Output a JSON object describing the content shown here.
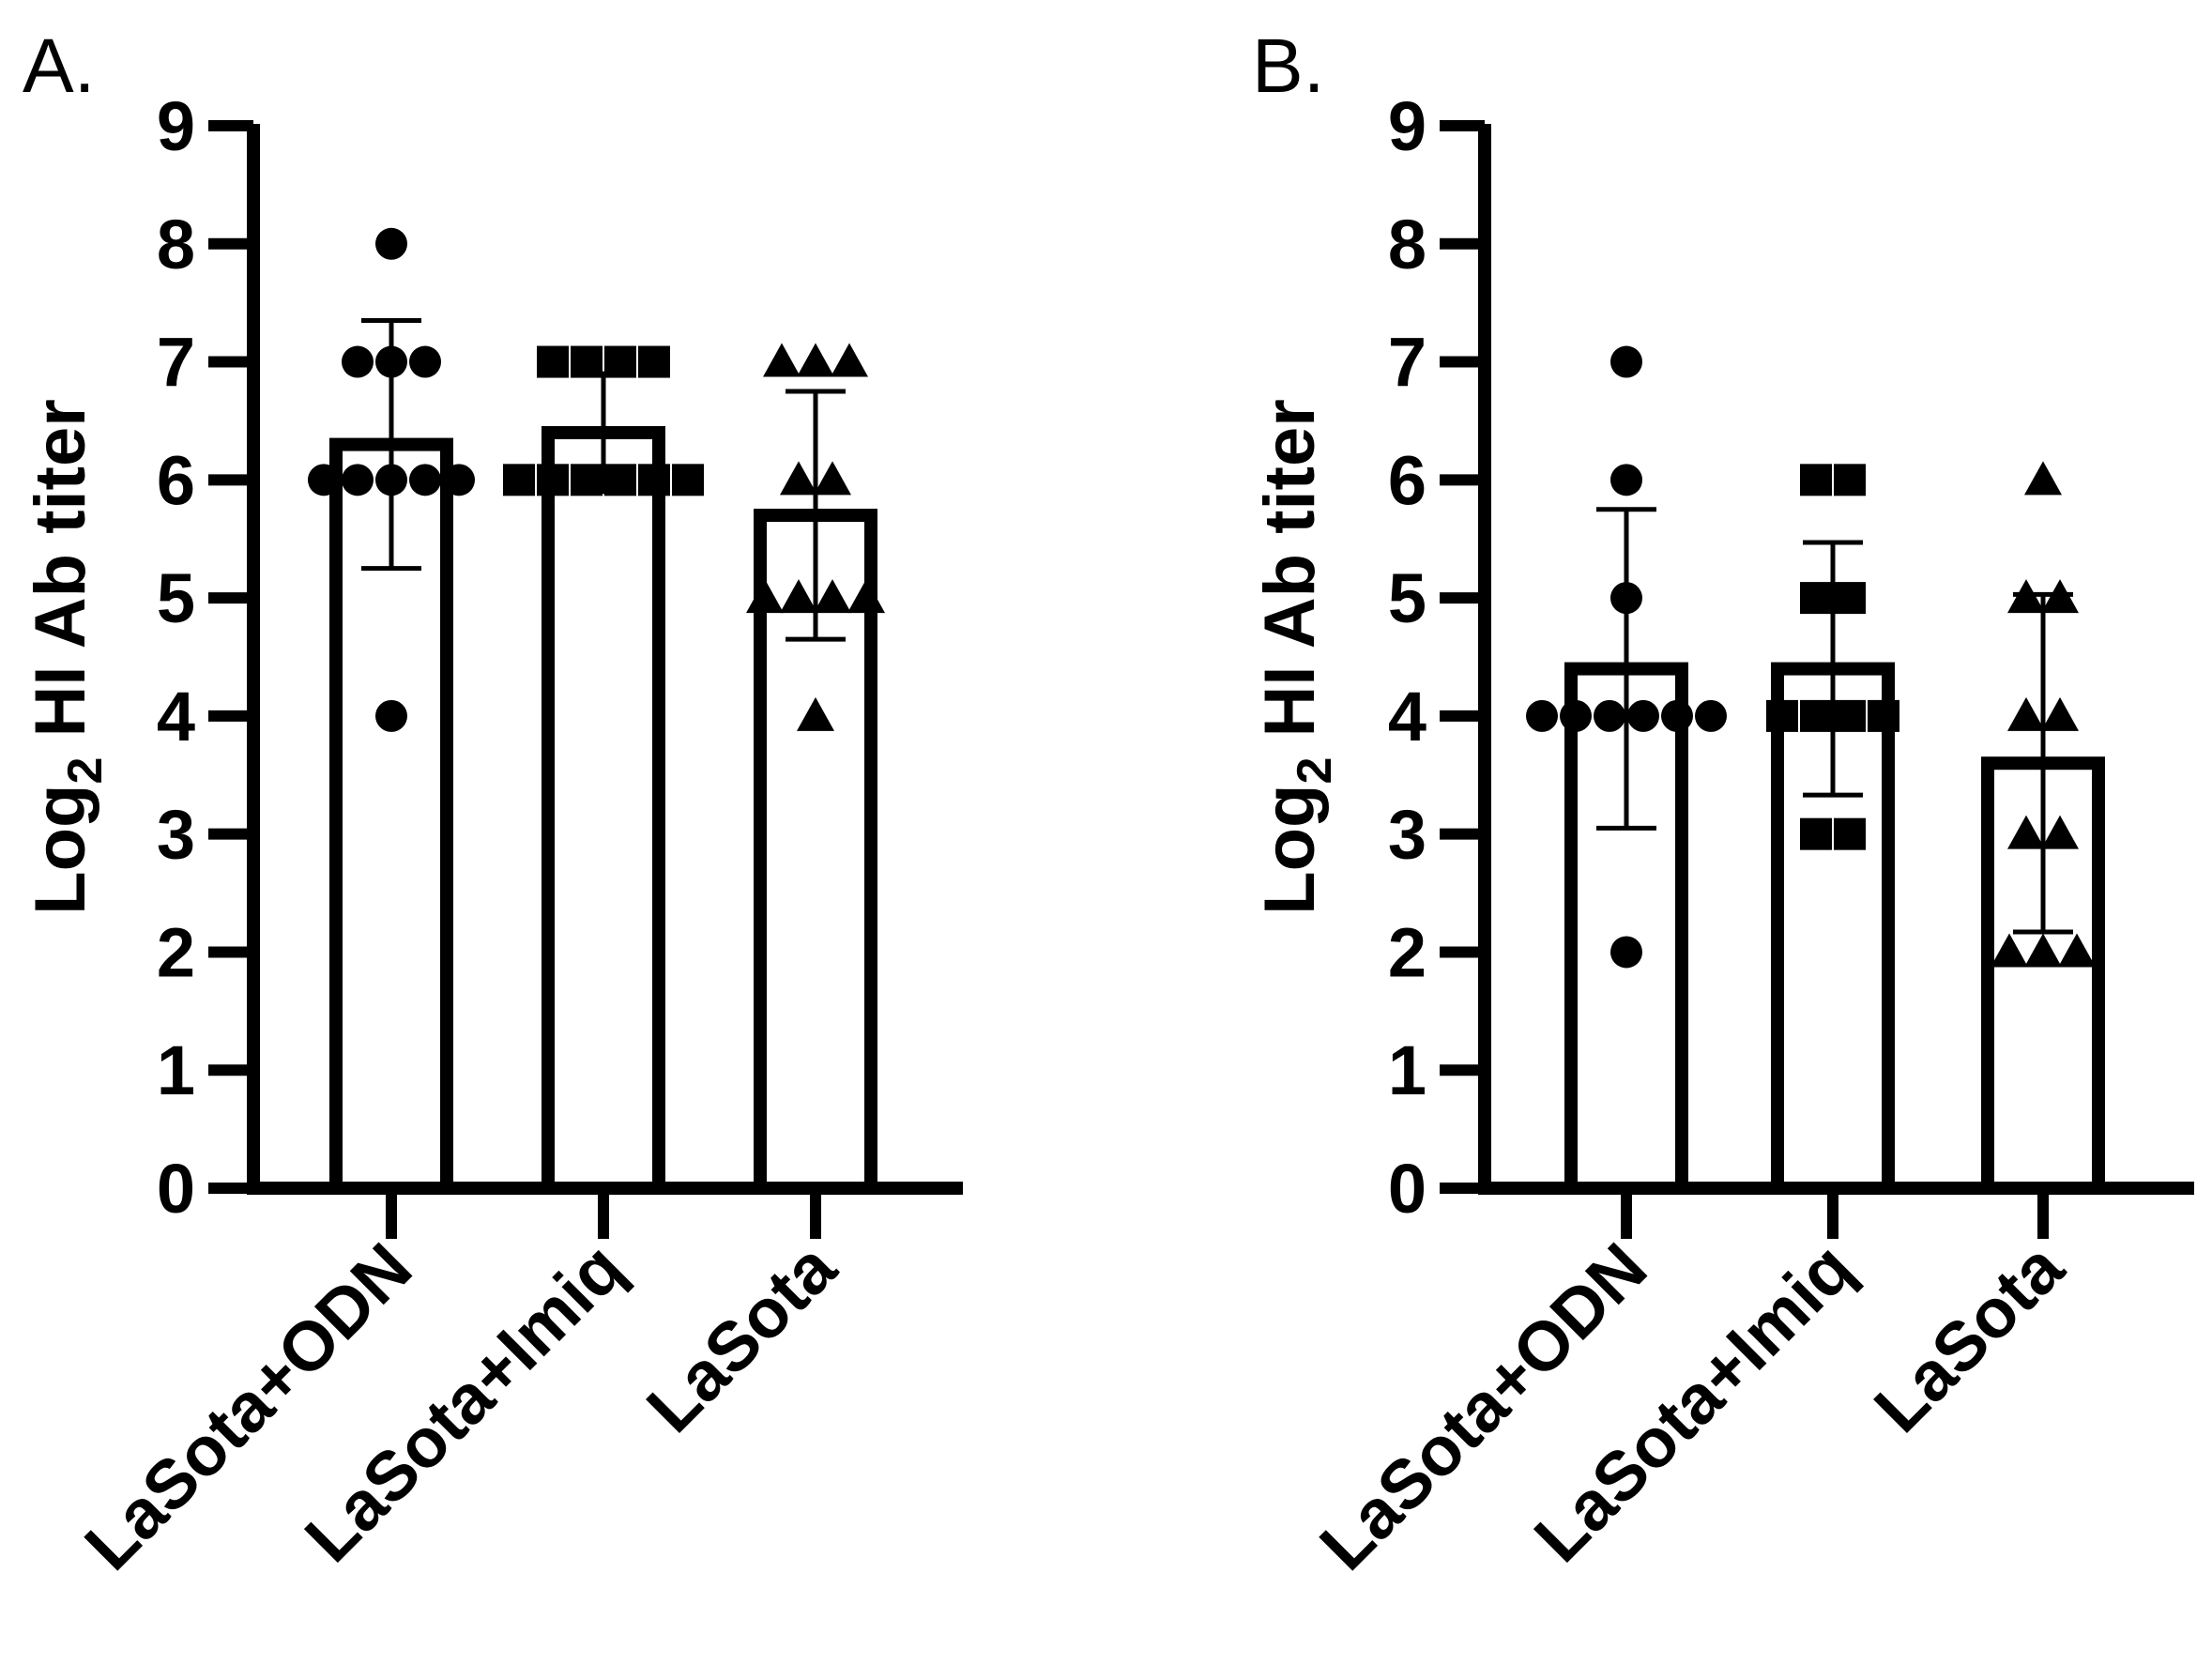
{
  "chart_data": [
    {
      "type": "bar",
      "panel": "A.",
      "ylabel_main": "Log",
      "ylabel_sub": "2",
      "ylabel_rest": " HI Ab titer",
      "ylim": [
        0,
        9
      ],
      "yticks": [
        "0",
        "1",
        "2",
        "3",
        "4",
        "5",
        "6",
        "7",
        "8",
        "9"
      ],
      "categories": [
        "LaSota+ODN",
        "LaSota+Imiq",
        "LaSota"
      ],
      "values": [
        6.3,
        6.4,
        5.7
      ],
      "sd": [
        1.05,
        0.5,
        1.05
      ],
      "markers": [
        "circle",
        "square",
        "triangle"
      ],
      "points": [
        [
          8,
          7,
          7,
          7,
          6,
          6,
          6,
          6,
          6,
          4
        ],
        [
          7,
          7,
          7,
          7,
          6,
          6,
          6,
          6,
          6,
          6
        ],
        [
          7,
          7,
          7,
          6,
          6,
          5,
          5,
          5,
          5,
          4
        ]
      ]
    },
    {
      "type": "bar",
      "panel": "B.",
      "ylabel_main": "Log",
      "ylabel_sub": "2",
      "ylabel_rest": " HI Ab titer",
      "ylim": [
        0,
        9
      ],
      "yticks": [
        "0",
        "1",
        "2",
        "3",
        "4",
        "5",
        "6",
        "7",
        "8",
        "9"
      ],
      "categories": [
        "LaSota+ODN",
        "LaSota+Imiq",
        "LaSota"
      ],
      "values": [
        4.4,
        4.4,
        3.6
      ],
      "sd": [
        1.35,
        1.07,
        1.43
      ],
      "markers": [
        "circle",
        "square",
        "triangle"
      ],
      "points": [
        [
          7,
          6,
          5,
          4,
          4,
          4,
          4,
          4,
          4,
          2
        ],
        [
          6,
          6,
          5,
          5,
          4,
          4,
          4,
          4,
          3,
          3
        ],
        [
          6,
          5,
          5,
          4,
          4,
          3,
          3,
          2,
          2,
          2
        ]
      ]
    }
  ]
}
